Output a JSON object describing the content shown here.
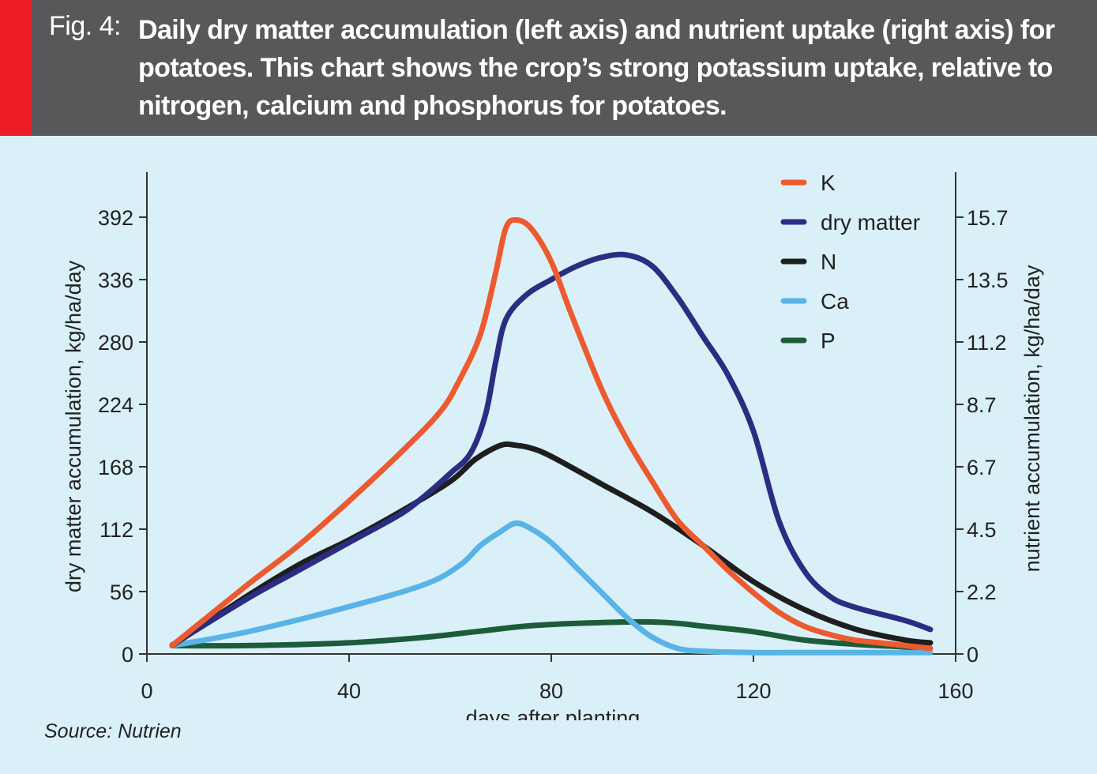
{
  "header": {
    "fig_label": "Fig. 4:",
    "title": "Daily dry matter accumulation (left axis) and nutrient uptake (right axis) for potatoes. This chart shows the crop’s strong potassium uptake, relative to nitrogen, calcium and phosphorus for potatoes.",
    "accent_color": "#ee1c25",
    "bar_color": "#58585a"
  },
  "source": "Source: Nutrien",
  "chart_data": {
    "type": "line",
    "xlabel": "days after planting",
    "ylabel_left": "dry matter accumulation, kg/ha/day",
    "ylabel_right": "nutrient accumulation, kg/ha/day",
    "xlim": [
      0,
      160
    ],
    "x_ticks": [
      "0",
      "40",
      "80",
      "120",
      "160"
    ],
    "ylim_left": [
      0,
      392
    ],
    "ylim_right": [
      0,
      15.7
    ],
    "y_ticks_left": [
      "0",
      "56",
      "112",
      "168",
      "224",
      "280",
      "336",
      "392"
    ],
    "y_ticks_right": [
      "0",
      "2.2",
      "4.5",
      "6.7",
      "8.7",
      "11.2",
      "13.5",
      "15.7"
    ],
    "legend_position": "top-right",
    "series": [
      {
        "name": "K",
        "axis": "right",
        "color": "#ec5a2f",
        "x": [
          5,
          20,
          30,
          40,
          50,
          58,
          62,
          66,
          69,
          71,
          73,
          76,
          80,
          84,
          90,
          95,
          100,
          105,
          110,
          115,
          120,
          125,
          130,
          135,
          140,
          145,
          150,
          155
        ],
        "y": [
          0.3,
          2.5,
          3.9,
          5.5,
          7.2,
          8.7,
          9.9,
          11.5,
          13.7,
          15.3,
          15.6,
          15.3,
          14.1,
          12.2,
          9.5,
          7.7,
          6.2,
          4.8,
          3.9,
          3.0,
          2.2,
          1.5,
          1.0,
          0.7,
          0.5,
          0.4,
          0.3,
          0.2
        ]
      },
      {
        "name": "dry matter",
        "axis": "left",
        "color": "#2a2d82",
        "x": [
          5,
          20,
          30,
          40,
          50,
          55,
          60,
          64,
          67,
          69,
          71,
          75,
          80,
          85,
          90,
          95,
          100,
          105,
          110,
          115,
          120,
          125,
          130,
          135,
          140,
          150,
          155
        ],
        "y": [
          8,
          50,
          75,
          100,
          125,
          142,
          162,
          180,
          215,
          262,
          300,
          322,
          336,
          348,
          356,
          358,
          348,
          320,
          285,
          250,
          200,
          120,
          75,
          52,
          42,
          30,
          22
        ]
      },
      {
        "name": "N",
        "axis": "right",
        "color": "#1e1e1e",
        "x": [
          5,
          20,
          30,
          40,
          50,
          60,
          65,
          70,
          73,
          76,
          80,
          90,
          100,
          110,
          120,
          130,
          140,
          150,
          155
        ],
        "y": [
          0.3,
          2.1,
          3.2,
          4.1,
          5.1,
          6.2,
          7.0,
          7.5,
          7.5,
          7.4,
          7.1,
          6.1,
          5.1,
          3.9,
          2.6,
          1.6,
          0.9,
          0.5,
          0.4
        ]
      },
      {
        "name": "Ca",
        "axis": "right",
        "color": "#59b4e6",
        "x": [
          5,
          20,
          40,
          55,
          62,
          66,
          70,
          73,
          76,
          80,
          85,
          90,
          95,
          100,
          105,
          110,
          120,
          130,
          140,
          150,
          155
        ],
        "y": [
          0.3,
          0.8,
          1.7,
          2.5,
          3.2,
          3.9,
          4.4,
          4.7,
          4.5,
          4.0,
          3.1,
          2.2,
          1.3,
          0.6,
          0.2,
          0.1,
          0.05,
          0.05,
          0.05,
          0.05,
          0.05
        ]
      },
      {
        "name": "P",
        "axis": "right",
        "color": "#1d5c3b",
        "x": [
          5,
          20,
          40,
          55,
          65,
          75,
          85,
          95,
          100,
          105,
          110,
          120,
          130,
          140,
          150,
          155
        ],
        "y": [
          0.3,
          0.3,
          0.4,
          0.6,
          0.8,
          1.0,
          1.1,
          1.15,
          1.15,
          1.1,
          1.0,
          0.8,
          0.5,
          0.35,
          0.25,
          0.2
        ]
      }
    ]
  }
}
